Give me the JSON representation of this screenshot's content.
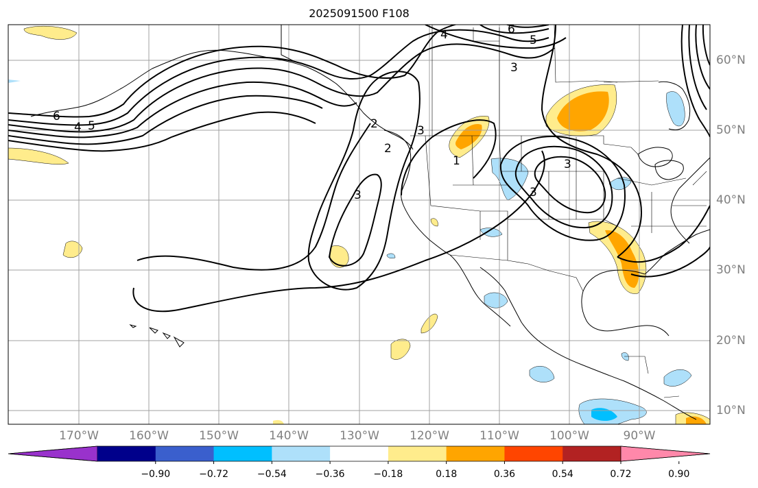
{
  "map": {
    "title": "2025091500 F108",
    "colors": {
      "grid": "#a0a0a0",
      "coast": "#000000",
      "contour": "#000000",
      "pos1": "#ffec8c",
      "pos2": "#ffa500",
      "neg1": "#aee0fa",
      "neg2": "#00bfff"
    },
    "longitude_labels": [
      "170°W",
      "160°W",
      "150°W",
      "140°W",
      "130°W",
      "120°W",
      "110°W",
      "100°W",
      "90°W"
    ],
    "latitude_labels": [
      "60°N",
      "50°N",
      "40°N",
      "30°N",
      "20°N",
      "10°N"
    ],
    "contour_labels": [
      "6",
      "5",
      "4",
      "6",
      "5",
      "4",
      "3",
      "2",
      "3",
      "2",
      "1",
      "3",
      "3",
      "3"
    ],
    "colorbar": {
      "colors": [
        "#9932cc",
        "#00008b",
        "#3a5fcd",
        "#00bfff",
        "#aee0fa",
        "#ffffff",
        "#ffec8c",
        "#ffa500",
        "#ff4500",
        "#b22222",
        "#ff88aa"
      ],
      "tick_labels": [
        "−0.90",
        "−0.72",
        "−0.54",
        "−0.36",
        "−0.18",
        "0.18",
        "0.36",
        "0.54",
        "0.72",
        "0.90"
      ]
    }
  }
}
